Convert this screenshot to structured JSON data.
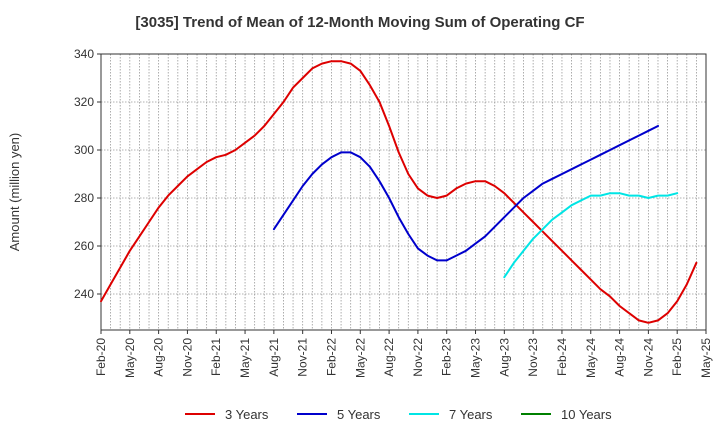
{
  "chart_data": {
    "type": "line",
    "title": "[3035]  Trend of Mean of 12-Month Moving Sum of Operating CF",
    "xlabel": "",
    "ylabel": "Amount (million yen)",
    "ylim": [
      225,
      340
    ],
    "yticks": [
      240,
      260,
      280,
      300,
      320,
      340
    ],
    "x_start": "Feb-20",
    "x_end": "May-25",
    "xticks": [
      "Feb-20",
      "May-20",
      "Aug-20",
      "Nov-20",
      "Feb-21",
      "May-21",
      "Aug-21",
      "Nov-21",
      "Feb-22",
      "May-22",
      "Aug-22",
      "Nov-22",
      "Feb-23",
      "May-23",
      "Aug-23",
      "Nov-23",
      "Feb-24",
      "May-24",
      "Aug-24",
      "Nov-24",
      "Feb-25",
      "May-25"
    ],
    "grid": true,
    "legend_position": "bottom",
    "series": [
      {
        "name": "3 Years",
        "color": "#dd0000",
        "start_index": 0,
        "values": [
          237,
          244,
          251,
          258,
          264,
          270,
          276,
          281,
          285,
          289,
          292,
          295,
          297,
          298,
          300,
          303,
          306,
          310,
          315,
          320,
          326,
          330,
          334,
          336,
          337,
          337,
          336,
          333,
          327,
          320,
          310,
          299,
          290,
          284,
          281,
          280,
          281,
          284,
          286,
          287,
          287,
          285,
          282,
          278,
          274,
          270,
          266,
          262,
          258,
          254,
          250,
          246,
          242,
          239,
          235,
          232,
          229,
          228,
          229,
          232,
          237,
          244,
          253
        ]
      },
      {
        "name": "5 Years",
        "color": "#0000cc",
        "start_index": 18,
        "values": [
          267,
          273,
          279,
          285,
          290,
          294,
          297,
          299,
          299,
          297,
          293,
          287,
          280,
          272,
          265,
          259,
          256,
          254,
          254,
          256,
          258,
          261,
          264,
          268,
          272,
          276,
          280,
          283,
          286,
          288,
          290,
          292,
          294,
          296,
          298,
          300,
          302,
          304,
          306,
          308,
          310
        ]
      },
      {
        "name": "7 Years",
        "color": "#00e5e5",
        "start_index": 42,
        "values": [
          247,
          253,
          258,
          263,
          267,
          271,
          274,
          277,
          279,
          281,
          281,
          282,
          282,
          281,
          281,
          280,
          281,
          281,
          282
        ]
      },
      {
        "name": "10 Years",
        "color": "#008000",
        "start_index": 0,
        "values": []
      }
    ]
  }
}
